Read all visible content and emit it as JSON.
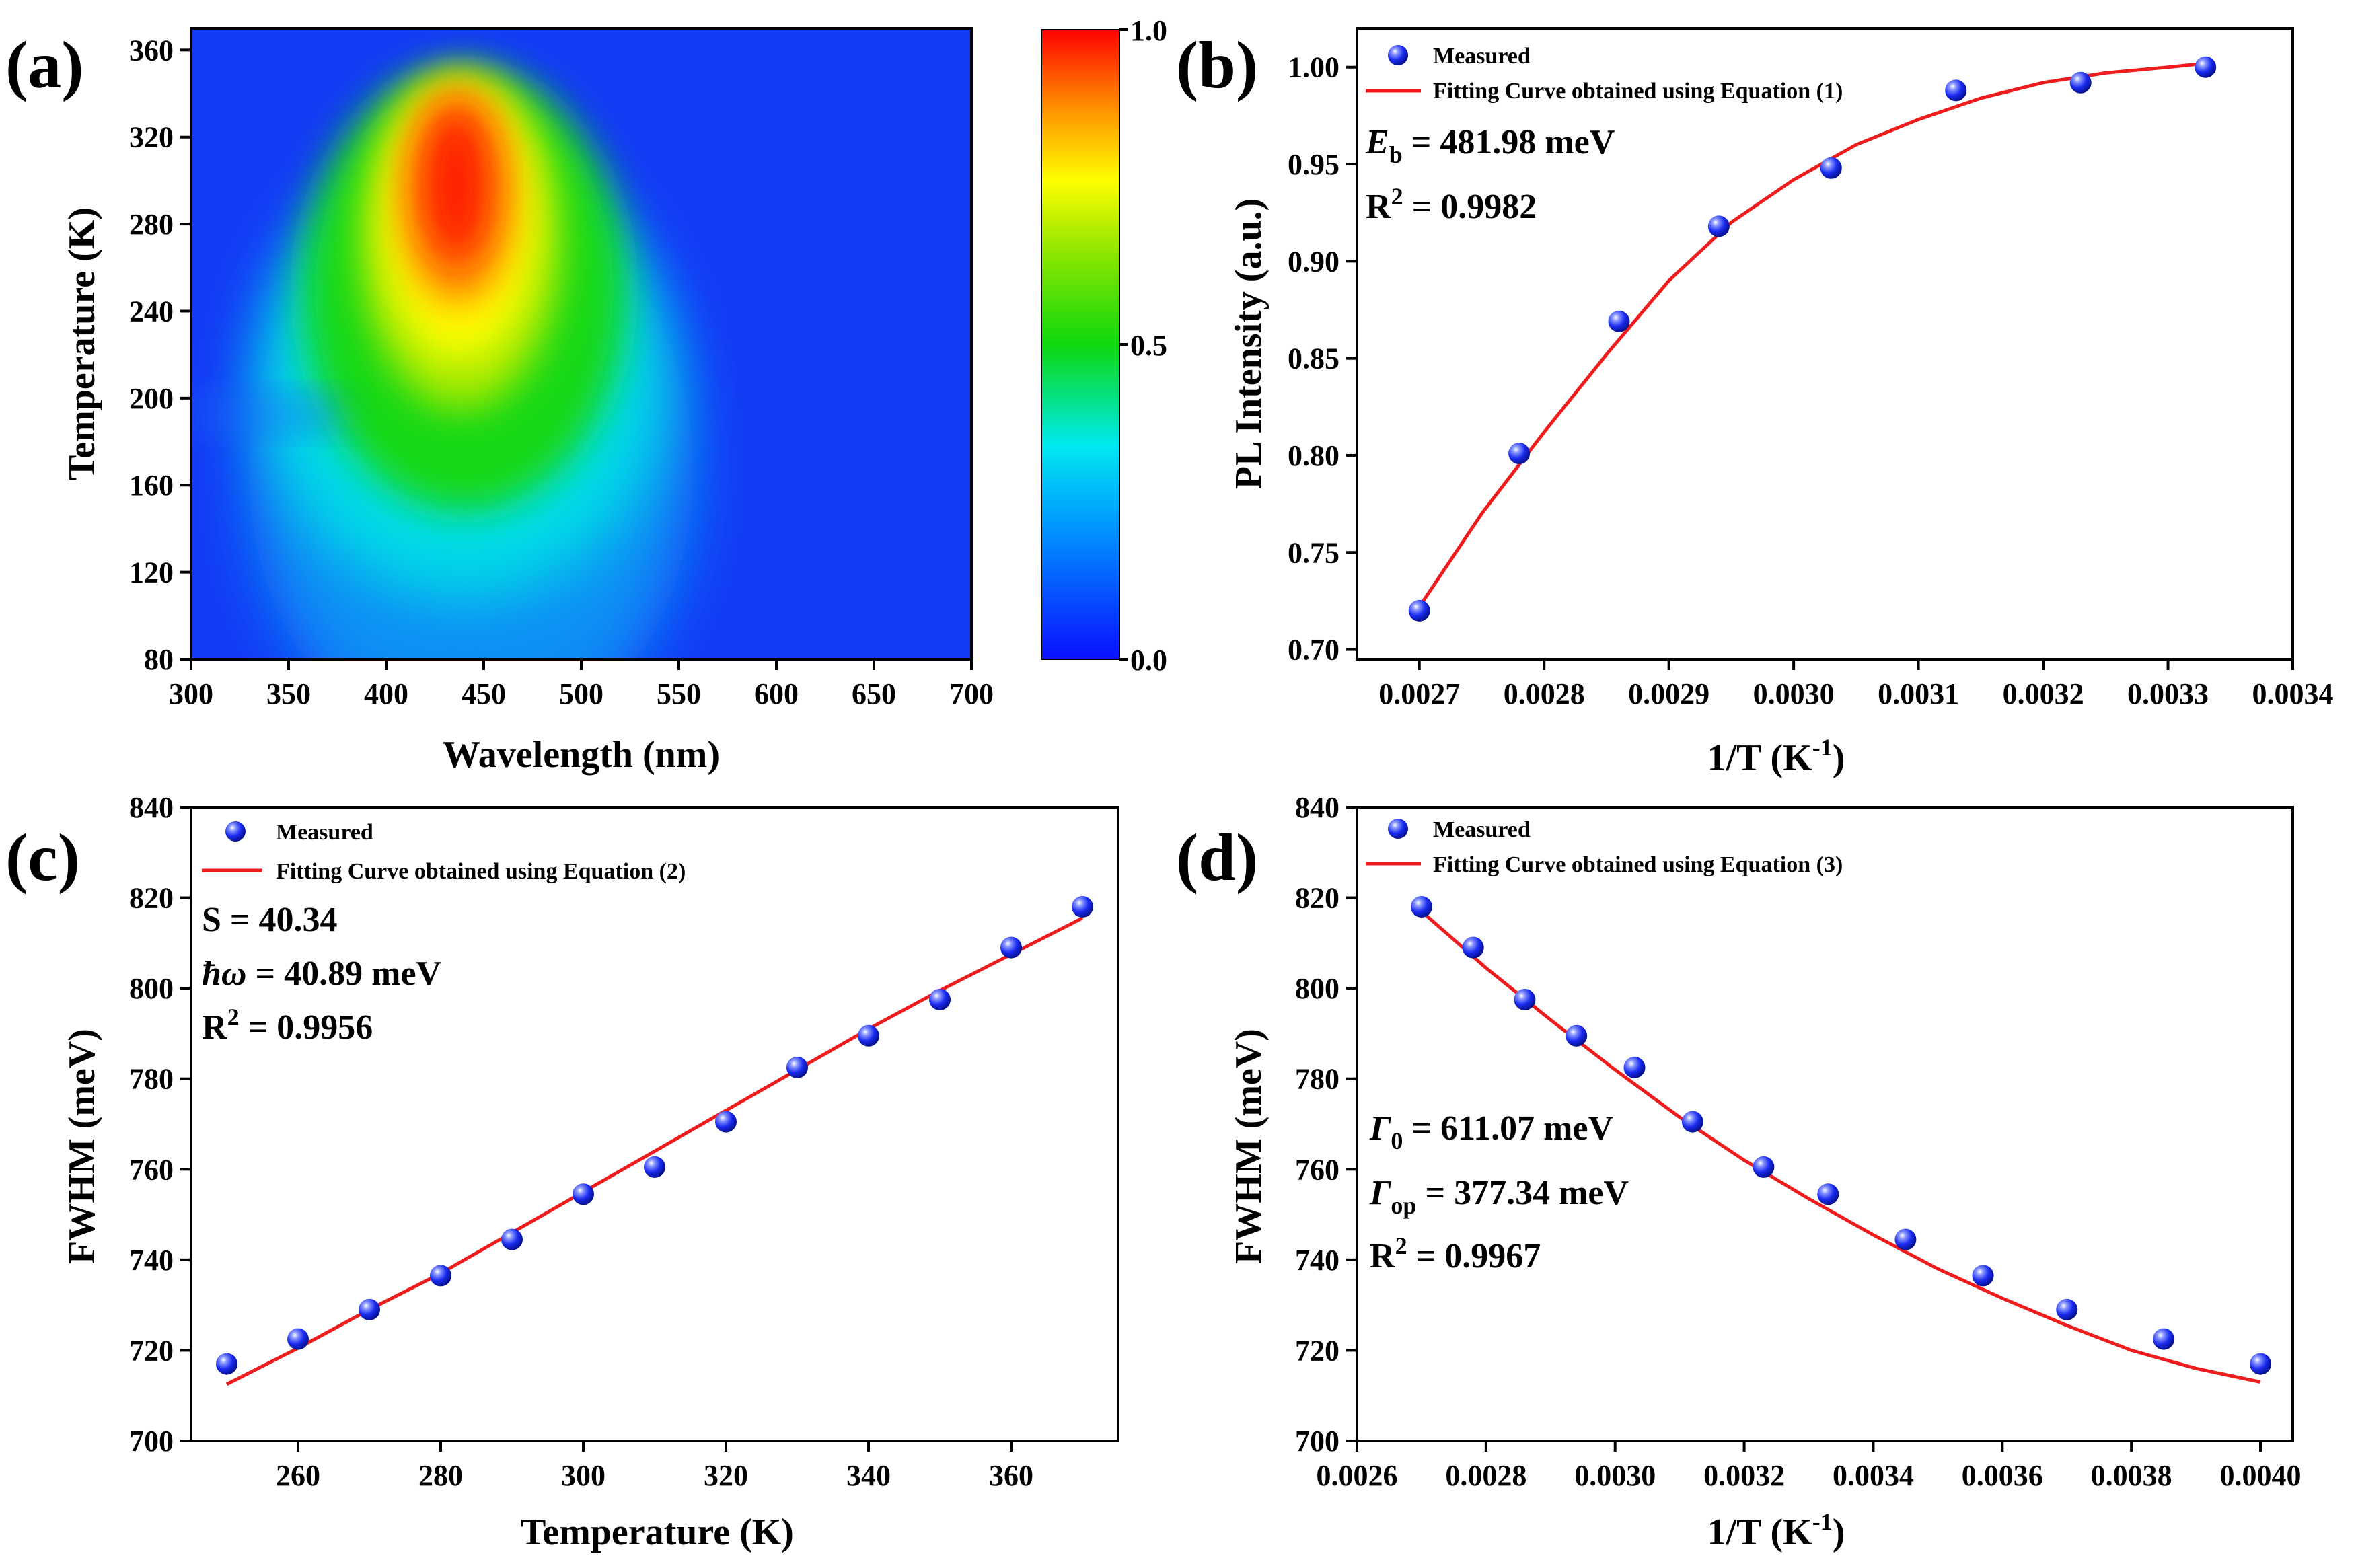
{
  "chart_data": [
    {
      "panel": "(a)",
      "type": "heatmap",
      "title": "",
      "xlabel": "Wavelength (nm)",
      "ylabel": "Temperature (K)",
      "xlim": [
        300,
        700
      ],
      "ylim": [
        80,
        370
      ],
      "xticks": [
        300,
        350,
        400,
        450,
        500,
        550,
        600,
        650,
        700
      ],
      "yticks": [
        80,
        120,
        160,
        200,
        240,
        280,
        320,
        360
      ],
      "colorbar": {
        "ticks": [
          "0.0",
          "0.5",
          "1.0"
        ],
        "range": [
          0,
          1
        ]
      },
      "peak": {
        "wavelength_nm": 435,
        "temperature_K": 290,
        "value": 1.0
      },
      "colors": {
        "low": "#0b1ff5",
        "mid_low": "#00e6f0",
        "mid": "#19d91a",
        "mid_high": "#ffff00",
        "high": "#ff0000"
      }
    },
    {
      "panel": "(b)",
      "type": "scatter",
      "xlabel": "1/T (K",
      "xlabel_sup": "-1",
      "xlabel_end": ")",
      "ylabel": "PL Intensity (a.u.)",
      "xlim": [
        0.00265,
        0.0034
      ],
      "ylim": [
        0.695,
        1.02
      ],
      "xticks": [
        "0.0027",
        "0.0028",
        "0.0029",
        "0.0030",
        "0.0031",
        "0.0032",
        "0.0033",
        "0.0034"
      ],
      "yticks": [
        "0.70",
        "0.75",
        "0.80",
        "0.85",
        "0.90",
        "0.95",
        "1.00"
      ],
      "series": [
        {
          "name": "Measured",
          "x": [
            0.0027,
            0.00278,
            0.00286,
            0.00294,
            0.00303,
            0.00313,
            0.00323,
            0.00333
          ],
          "y": [
            0.72,
            0.801,
            0.869,
            0.918,
            0.948,
            0.988,
            0.992,
            1.0
          ]
        }
      ],
      "fit": {
        "name": "Fitting Curve obtained using Equation (1)",
        "x": [
          0.0027,
          0.00275,
          0.0028,
          0.00285,
          0.0029,
          0.00295,
          0.003,
          0.00305,
          0.0031,
          0.00315,
          0.0032,
          0.00325,
          0.0033,
          0.00333
        ],
        "y": [
          0.722,
          0.77,
          0.812,
          0.852,
          0.89,
          0.92,
          0.942,
          0.96,
          0.973,
          0.984,
          0.992,
          0.997,
          1.0,
          1.002
        ]
      },
      "annotations": [
        {
          "sym": "E",
          "sub": "b",
          "text": " = 481.98 meV"
        },
        {
          "sym": "R",
          "sup": "2",
          "text": " = 0.9982"
        }
      ]
    },
    {
      "panel": "(c)",
      "type": "scatter",
      "xlabel": "Temperature (K)",
      "ylabel": "FWHM (meV)",
      "xlim": [
        245,
        375
      ],
      "ylim": [
        700,
        840
      ],
      "xticks": [
        "260",
        "280",
        "300",
        "320",
        "340",
        "360"
      ],
      "yticks": [
        "700",
        "720",
        "740",
        "760",
        "780",
        "800",
        "820",
        "840"
      ],
      "series": [
        {
          "name": "Measured",
          "x": [
            250,
            260,
            270,
            280,
            290,
            300,
            310,
            320,
            330,
            340,
            350,
            360,
            370
          ],
          "y": [
            717,
            722.5,
            729,
            736.5,
            744.5,
            754.5,
            760.5,
            770.5,
            782.5,
            789.5,
            797.5,
            809,
            818
          ]
        }
      ],
      "fit": {
        "name": "Fitting Curve obtained using Equation (2)",
        "x": [
          250,
          260,
          270,
          280,
          290,
          300,
          310,
          320,
          330,
          340,
          350,
          360,
          370
        ],
        "y": [
          712.5,
          720.5,
          729,
          737,
          746,
          755,
          764,
          773,
          782,
          791,
          799.5,
          807.5,
          815.5
        ]
      },
      "annotations": [
        {
          "sym": "S",
          "text": " = 40.34"
        },
        {
          "sym": "ħω",
          "italic": true,
          "text": " = 40.89 meV"
        },
        {
          "sym": "R",
          "sup": "2",
          "text": " = 0.9956"
        }
      ]
    },
    {
      "panel": "(d)",
      "type": "scatter",
      "xlabel": "1/T (K",
      "xlabel_sup": "-1",
      "xlabel_end": ")",
      "ylabel": "FWHM (meV)",
      "xlim": [
        0.0026,
        0.00405
      ],
      "ylim": [
        700,
        840
      ],
      "xticks": [
        "0.0026",
        "0.0028",
        "0.0030",
        "0.0032",
        "0.0034",
        "0.0036",
        "0.0038",
        "0.0040"
      ],
      "yticks": [
        "700",
        "720",
        "740",
        "760",
        "780",
        "800",
        "820",
        "840"
      ],
      "series": [
        {
          "name": "Measured",
          "x": [
            0.0027,
            0.00278,
            0.00286,
            0.00294,
            0.00303,
            0.00312,
            0.00323,
            0.00333,
            0.00345,
            0.00357,
            0.0037,
            0.00385,
            0.004
          ],
          "y": [
            818,
            809,
            797.5,
            789.5,
            782.5,
            770.5,
            760.5,
            754.5,
            744.5,
            736.5,
            729,
            722.5,
            717
          ]
        }
      ],
      "fit": {
        "name": "Fitting Curve obtained using Equation (3)",
        "x": [
          0.0027,
          0.0028,
          0.0029,
          0.003,
          0.0031,
          0.0032,
          0.0033,
          0.0034,
          0.0035,
          0.0036,
          0.0037,
          0.0038,
          0.0039,
          0.004
        ],
        "y": [
          817,
          804.5,
          793,
          782,
          771.5,
          762,
          753.5,
          745.5,
          738,
          731.5,
          725.5,
          720,
          716,
          713
        ]
      },
      "annotations": [
        {
          "sym": "Γ",
          "sub": "0",
          "text": " = 611.07 meV"
        },
        {
          "sym": "Γ",
          "sub": "op",
          "text": " = 377.34 meV"
        },
        {
          "sym": "R",
          "sup": "2",
          "text": " = 0.9967"
        }
      ]
    }
  ]
}
